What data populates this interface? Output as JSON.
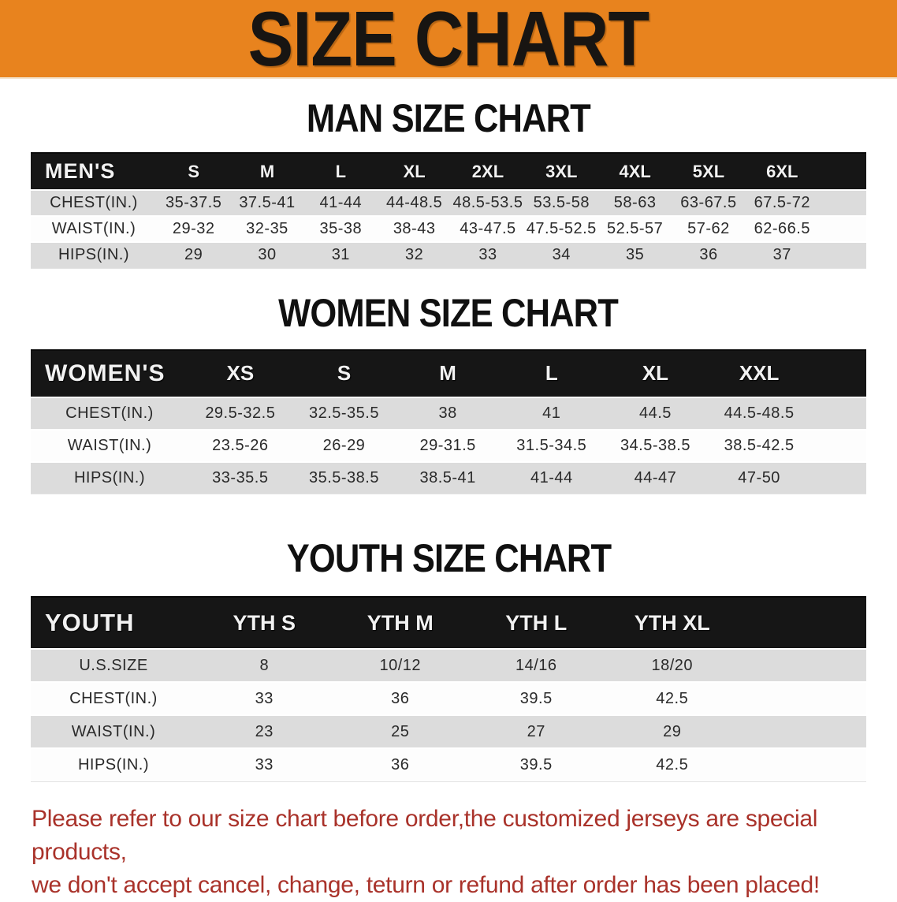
{
  "banner": {
    "title": "SIZE CHART"
  },
  "colors": {
    "banner_bg": "#e8831e",
    "table_header_bg": "#161616",
    "row_stripe": "#dcdcdc",
    "note_red": "#a9322a"
  },
  "men": {
    "heading": "MAN SIZE CHART",
    "corner": "MEN'S",
    "sizes": [
      "S",
      "M",
      "L",
      "XL",
      "2XL",
      "3XL",
      "4XL",
      "5XL",
      "6XL"
    ],
    "rows": [
      {
        "label": "CHEST(IN.)",
        "values": [
          "35-37.5",
          "37.5-41",
          "41-44",
          "44-48.5",
          "48.5-53.5",
          "53.5-58",
          "58-63",
          "63-67.5",
          "67.5-72"
        ]
      },
      {
        "label": "WAIST(IN.)",
        "values": [
          "29-32",
          "32-35",
          "35-38",
          "38-43",
          "43-47.5",
          "47.5-52.5",
          "52.5-57",
          "57-62",
          "62-66.5"
        ]
      },
      {
        "label": "HIPS(IN.)",
        "values": [
          "29",
          "30",
          "31",
          "32",
          "33",
          "34",
          "35",
          "36",
          "37"
        ]
      }
    ]
  },
  "women": {
    "heading": "WOMEN SIZE CHART",
    "corner": "WOMEN'S",
    "sizes": [
      "XS",
      "S",
      "M",
      "L",
      "XL",
      "XXL"
    ],
    "rows": [
      {
        "label": "CHEST(IN.)",
        "values": [
          "29.5-32.5",
          "32.5-35.5",
          "38",
          "41",
          "44.5",
          "44.5-48.5"
        ]
      },
      {
        "label": "WAIST(IN.)",
        "values": [
          "23.5-26",
          "26-29",
          "29-31.5",
          "31.5-34.5",
          "34.5-38.5",
          "38.5-42.5"
        ]
      },
      {
        "label": "HIPS(IN.)",
        "values": [
          "33-35.5",
          "35.5-38.5",
          "38.5-41",
          "41-44",
          "44-47",
          "47-50"
        ]
      }
    ]
  },
  "youth": {
    "heading": "YOUTH SIZE CHART",
    "corner": "YOUTH",
    "sizes": [
      "YTH S",
      "YTH M",
      "YTH L",
      "YTH XL"
    ],
    "rows": [
      {
        "label": "U.S.SIZE",
        "values": [
          "8",
          "10/12",
          "14/16",
          "18/20"
        ]
      },
      {
        "label": "CHEST(IN.)",
        "values": [
          "33",
          "36",
          "39.5",
          "42.5"
        ]
      },
      {
        "label": "WAIST(IN.)",
        "values": [
          "23",
          "25",
          "27",
          "29"
        ]
      },
      {
        "label": "HIPS(IN.)",
        "values": [
          "33",
          "36",
          "39.5",
          "42.5"
        ]
      }
    ]
  },
  "note": {
    "line1": "Please refer to our size chart before order,the customized jerseys are special products,",
    "line2": "we don't accept cancel, change, teturn or refund after order has been placed!"
  }
}
